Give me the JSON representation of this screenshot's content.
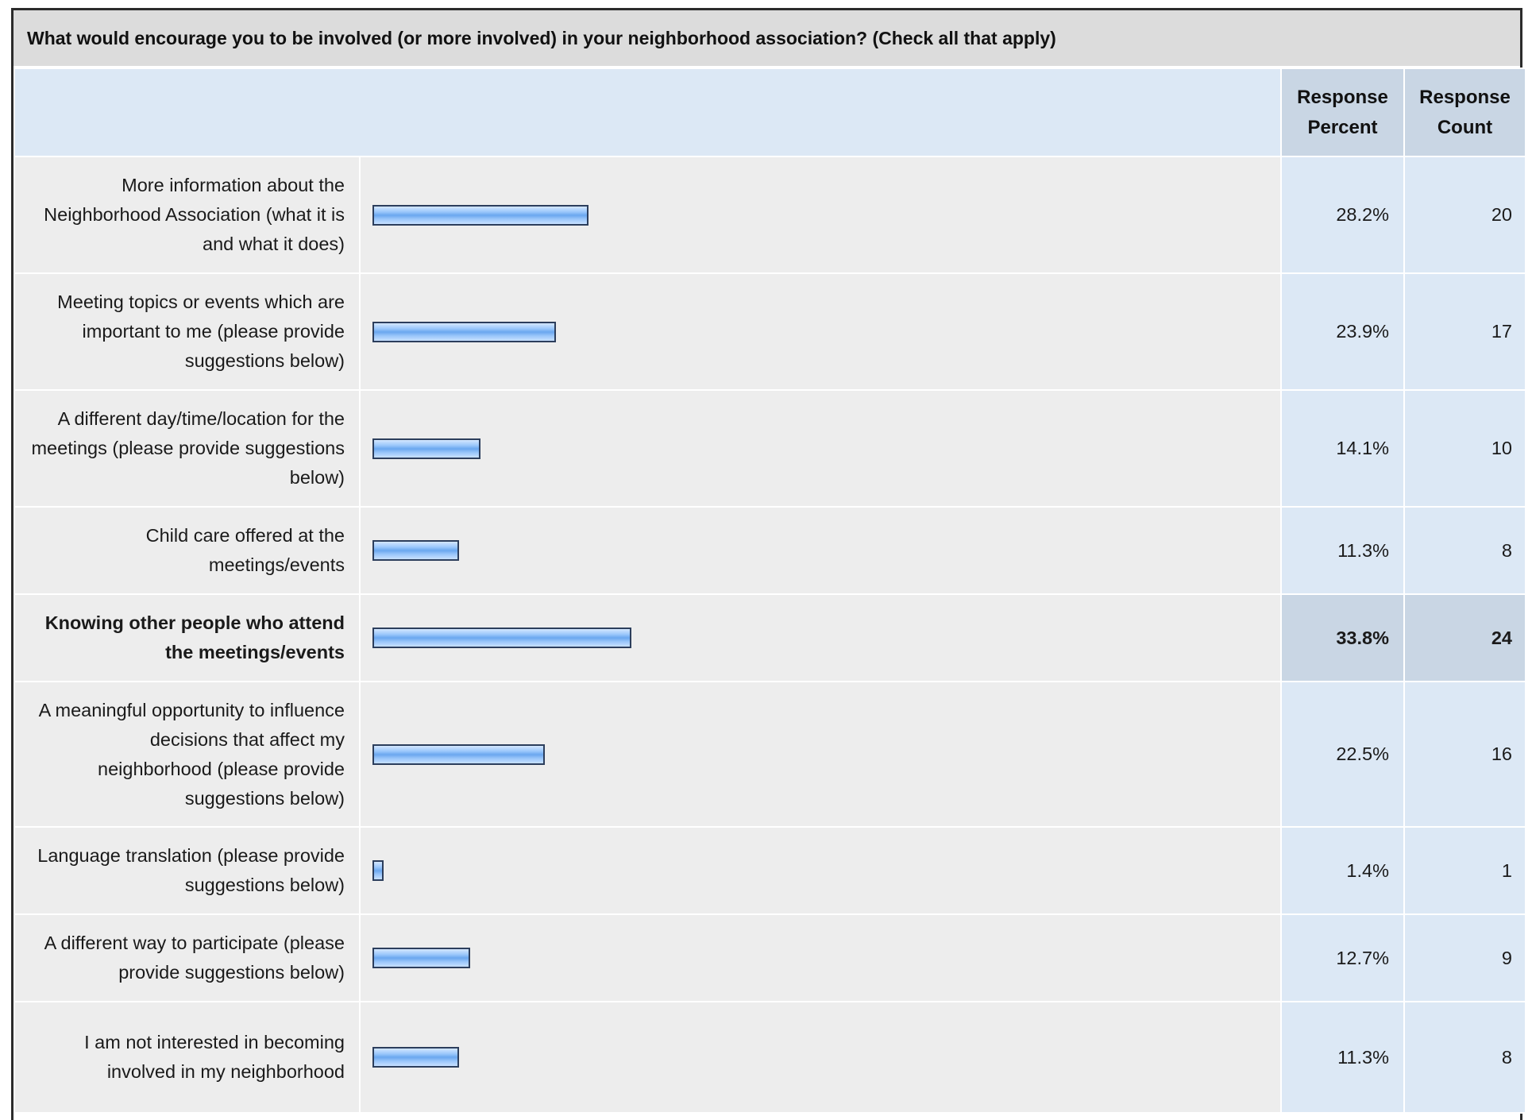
{
  "question": "What would encourage you to be involved (or more involved) in your neighborhood association? (Check all that apply)",
  "headers": {
    "percent_line1": "Response",
    "percent_line2": "Percent",
    "count_line1": "Response",
    "count_line2": "Count"
  },
  "colors": {
    "bar_border": "#2c3e5c",
    "bar_fill": "#8dbdf6",
    "header_bg": "#c9d6e4",
    "value_bg": "#dce8f5",
    "label_bg": "#ededed"
  },
  "chart_data": {
    "type": "bar",
    "orientation": "horizontal",
    "title": "What would encourage you to be involved (or more involved) in your neighborhood association? (Check all that apply)",
    "xlim": [
      0,
      100
    ],
    "categories": [
      "More information about the Neighborhood Association (what it is and what it does)",
      "Meeting topics or events which are important to me (please provide suggestions below)",
      "A different day/time/location for the meetings (please provide suggestions below)",
      "Child care offered at the meetings/events",
      "Knowing other people who attend the meetings/events",
      "A meaningful opportunity to influence decisions that affect my neighborhood (please provide suggestions below)",
      "Language translation (please provide suggestions below)",
      "A different way to participate (please provide suggestions below)",
      "I am not interested in becoming involved in my neighborhood"
    ],
    "series": [
      {
        "name": "Response Percent",
        "values": [
          28.2,
          23.9,
          14.1,
          11.3,
          33.8,
          22.5,
          1.4,
          12.7,
          11.3
        ]
      },
      {
        "name": "Response Count",
        "values": [
          20,
          17,
          10,
          8,
          24,
          16,
          1,
          9,
          8
        ]
      }
    ],
    "rows": [
      {
        "label": "More information about the Neighborhood Association (what it is and what it does)",
        "percent": 28.2,
        "percent_text": "28.2%",
        "count": "20",
        "highlight": false
      },
      {
        "label": "Meeting topics or events which are important to me (please provide suggestions below)",
        "percent": 23.9,
        "percent_text": "23.9%",
        "count": "17",
        "highlight": false
      },
      {
        "label": "A different day/time/location for the meetings (please provide suggestions below)",
        "percent": 14.1,
        "percent_text": "14.1%",
        "count": "10",
        "highlight": false
      },
      {
        "label": "Child care offered at the meetings/events",
        "percent": 11.3,
        "percent_text": "11.3%",
        "count": "8",
        "highlight": false
      },
      {
        "label": "Knowing other people who attend the meetings/events",
        "percent": 33.8,
        "percent_text": "33.8%",
        "count": "24",
        "highlight": true
      },
      {
        "label": "A meaningful opportunity to influence decisions that affect my neighborhood (please provide suggestions below)",
        "percent": 22.5,
        "percent_text": "22.5%",
        "count": "16",
        "highlight": false
      },
      {
        "label": "Language translation (please provide suggestions below)",
        "percent": 1.4,
        "percent_text": "1.4%",
        "count": "1",
        "highlight": false
      },
      {
        "label": "A different way to participate (please provide suggestions below)",
        "percent": 12.7,
        "percent_text": "12.7%",
        "count": "9",
        "highlight": false
      },
      {
        "label": "I am not interested in becoming involved in my neighborhood",
        "percent": 11.3,
        "percent_text": "11.3%",
        "count": "8",
        "highlight": false
      }
    ]
  }
}
